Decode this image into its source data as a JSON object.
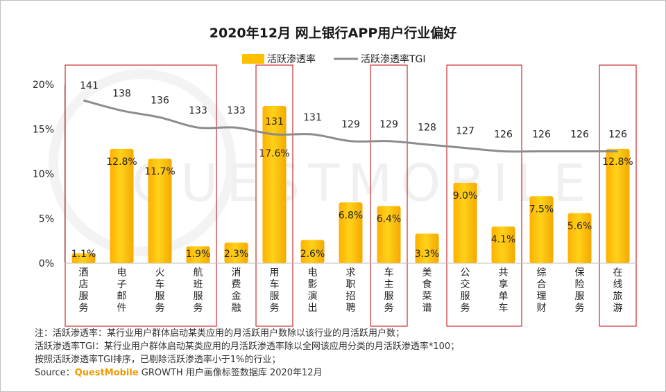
{
  "chart_data": {
    "type": "bar",
    "title": "2020年12月 网上银行APP用户行业偏好",
    "xlabel": "",
    "ylabel": "",
    "ylim": [
      0,
      20
    ],
    "yticks": [
      "0%",
      "5%",
      "10%",
      "15%",
      "20%"
    ],
    "categories": [
      "酒店服务",
      "电子邮件",
      "火车服务",
      "航班服务",
      "消费金融",
      "用车服务",
      "电影演出",
      "求职招聘",
      "车主服务",
      "美食菜谱",
      "公交服务",
      "共享单车",
      "综合理财",
      "保险服务",
      "在线旅游"
    ],
    "series": [
      {
        "name": "活跃渗透率",
        "type": "bar",
        "values": [
          1.1,
          12.8,
          11.7,
          1.9,
          2.3,
          17.6,
          2.6,
          6.8,
          6.4,
          3.3,
          9.0,
          4.1,
          7.5,
          5.6,
          12.8
        ],
        "labels": [
          "1.1%",
          "12.8%",
          "11.7%",
          "1.9%",
          "2.3%",
          "17.6%",
          "2.6%",
          "6.8%",
          "6.4%",
          "3.3%",
          "9.0%",
          "4.1%",
          "7.5%",
          "5.6%",
          "12.8%"
        ],
        "color": "#FFC000"
      },
      {
        "name": "活跃渗透率TGI",
        "type": "line",
        "values": [
          141,
          138,
          136,
          133,
          133,
          131,
          131,
          129,
          129,
          128,
          127,
          126,
          126,
          126,
          126
        ],
        "labels": [
          "141",
          "138",
          "136",
          "133",
          "133",
          "131",
          "131",
          "129",
          "129",
          "128",
          "127",
          "126",
          "126",
          "126",
          "126"
        ],
        "color": "#8C8C8C"
      }
    ],
    "highlighted_categories": [
      "酒店服务",
      "电子邮件",
      "火车服务",
      "航班服务",
      "用车服务",
      "车主服务",
      "公交服务",
      "共享单车",
      "在线旅游"
    ],
    "legend": "top-center",
    "watermark": "QUESTMOBILE"
  },
  "notes": [
    "注：活跃渗透率：某行业用户群体启动某类应用的月活跃用户数除以该行业的月活跃用户数；",
    "活跃渗透率TGI：某行业用户群体启动某类应用的月活跃渗透率除以全网该应用分类的月活跃渗透率*100；",
    "按照活跃渗透率TGI排序，已剔除活跃渗透率小于1%的行业；"
  ],
  "source": {
    "label": "Source：",
    "brand": "QuestMobile",
    "rest": " GROWTH 用户画像标签数据库 2020年12月"
  }
}
